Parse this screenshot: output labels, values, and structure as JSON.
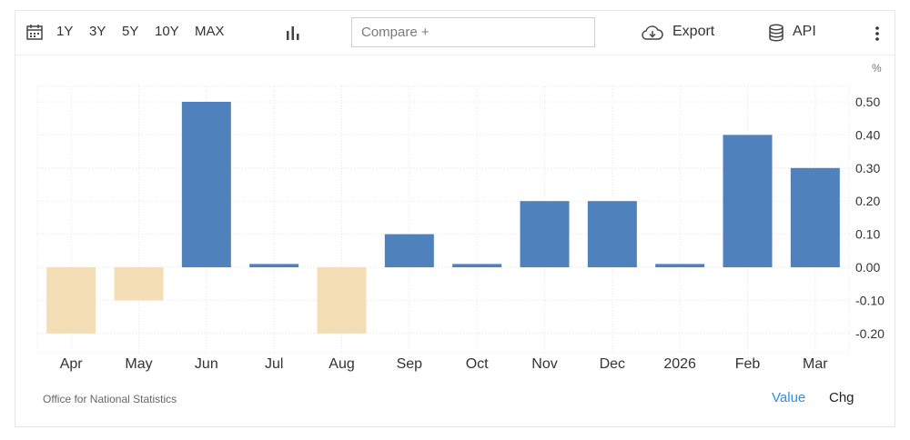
{
  "toolbar": {
    "ranges": [
      "1Y",
      "3Y",
      "5Y",
      "10Y",
      "MAX"
    ],
    "compare_placeholder": "Compare +",
    "export_label": "Export",
    "api_label": "API"
  },
  "footer": {
    "source": "Office for National Statistics",
    "toggle_value": "Value",
    "toggle_chg": "Chg"
  },
  "colors": {
    "positive": "#4f81bd",
    "negative": "#f4deb5",
    "active_link": "#2e8ee0"
  },
  "chart_data": {
    "type": "bar",
    "unit": "%",
    "categories": [
      "Apr",
      "May",
      "Jun",
      "Jul",
      "Aug",
      "Sep",
      "Oct",
      "Nov",
      "Dec",
      "2026",
      "Feb",
      "Mar"
    ],
    "values": [
      -0.2,
      -0.1,
      0.5,
      0.01,
      -0.2,
      0.1,
      0.01,
      0.2,
      0.2,
      0.01,
      0.4,
      0.3
    ],
    "yticks": [
      0.5,
      0.4,
      0.3,
      0.2,
      0.1,
      0.0,
      -0.1,
      -0.2
    ],
    "ytick_labels": [
      "0.50",
      "0.40",
      "0.30",
      "0.20",
      "0.10",
      "0.00",
      "-0.10",
      "-0.20"
    ],
    "ylim": [
      -0.26,
      0.55
    ],
    "grid": true
  }
}
